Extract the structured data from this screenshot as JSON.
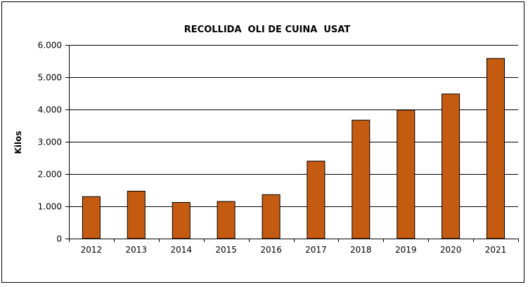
{
  "chart_data": {
    "type": "bar",
    "title": "RECOLLIDA  OLI DE CUINA  USAT",
    "xlabel": "",
    "ylabel": "Kilos",
    "categories": [
      "2012",
      "2013",
      "2014",
      "2015",
      "2016",
      "2017",
      "2018",
      "2019",
      "2020",
      "2021"
    ],
    "values": [
      1300,
      1470,
      1120,
      1150,
      1360,
      2400,
      3670,
      3980,
      4480,
      5580
    ],
    "ylim": [
      0,
      6000
    ],
    "yticks": [
      0,
      1000,
      2000,
      3000,
      4000,
      5000,
      6000
    ],
    "ytick_labels": [
      "0",
      "1.000",
      "2.000",
      "3.000",
      "4.000",
      "5.000",
      "6.000"
    ],
    "grid": true,
    "legend": "none",
    "bar_color": "#C55A11",
    "bar_stroke": "#000000"
  }
}
